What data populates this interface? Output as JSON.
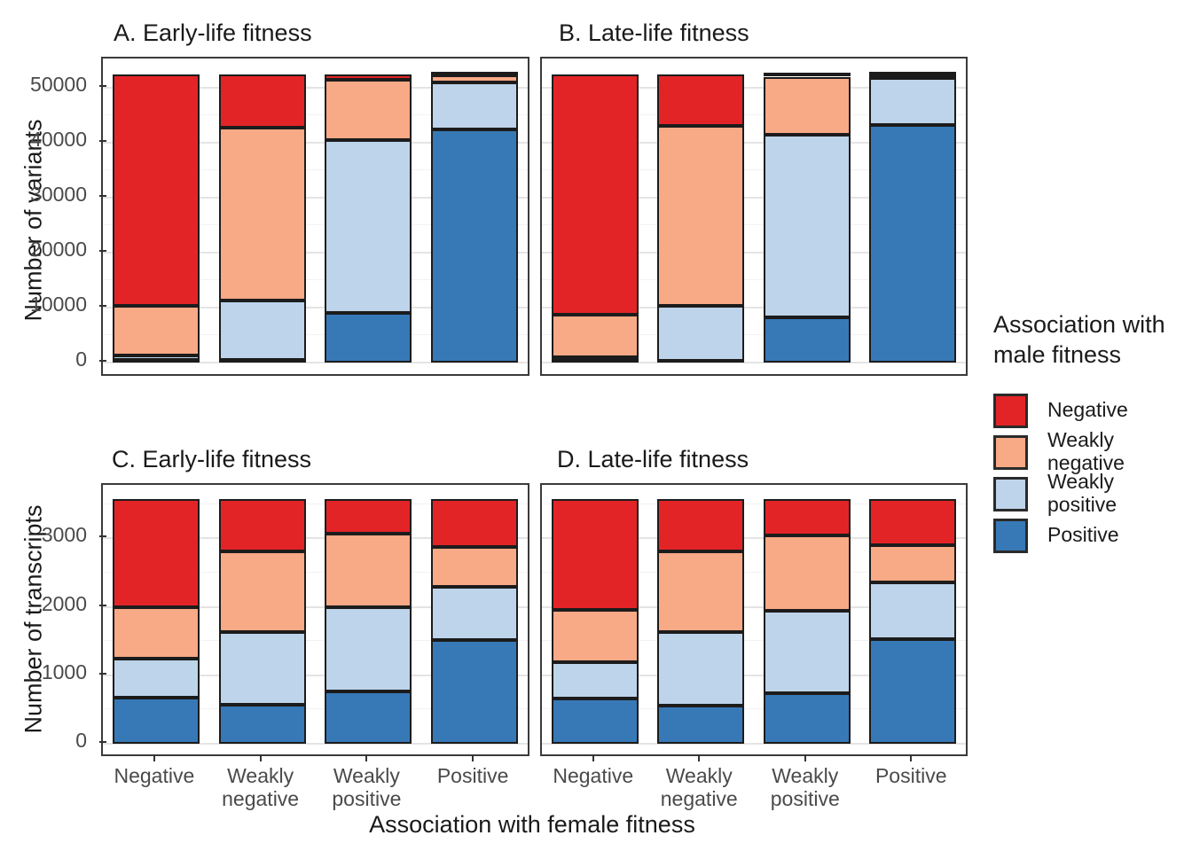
{
  "figure": {
    "y_axis_top_title": "Number of variants",
    "y_axis_bottom_title": "Number of transcripts",
    "x_axis_title": "Association with female fitness",
    "y_ticks_top": [
      "0",
      "10000",
      "20000",
      "30000",
      "40000",
      "50000"
    ],
    "y_ticks_bottom": [
      "0",
      "1000",
      "2000",
      "3000"
    ]
  },
  "legend": {
    "title": "Association with male fitness",
    "entries": [
      {
        "label": "Negative",
        "color": "#e32427"
      },
      {
        "label": "Weakly negative",
        "color": "#f8a985"
      },
      {
        "label": "Weakly positive",
        "color": "#bdd4ea"
      },
      {
        "label": "Positive",
        "color": "#3779b6"
      }
    ]
  },
  "colors": {
    "negative": "#e32427",
    "weakly_negative": "#f8a985",
    "weakly_positive": "#bdd4ea",
    "positive": "#3779b6",
    "bar_border": "#1c1c1c",
    "panel_border": "#3a3a3a"
  },
  "chart_data": {
    "type": "bar",
    "stacked": true,
    "grid": true,
    "legend_position": "right",
    "legend_title": "Association with male fitness",
    "categories": [
      "Negative",
      "Weakly negative",
      "Weakly positive",
      "Positive"
    ],
    "xlabel": "Association with female fitness",
    "panels": [
      {
        "id": "A",
        "row": 0,
        "title": "A. Early-life fitness",
        "ylabel": "Number of variants",
        "ylim": [
          0,
          52400
        ],
        "series": [
          {
            "name": "Positive",
            "values": [
              500,
              500,
              9000,
              42400
            ]
          },
          {
            "name": "Weakly positive",
            "values": [
              800,
              10800,
              31500,
              8600
            ]
          },
          {
            "name": "Weakly negative",
            "values": [
              9000,
              31500,
              10900,
              1200
            ]
          },
          {
            "name": "Negative",
            "values": [
              42100,
              9600,
              1000,
              200
            ]
          }
        ]
      },
      {
        "id": "B",
        "row": 0,
        "title": "B. Late-life fitness",
        "ylabel": "Number of variants",
        "ylim": [
          0,
          52400
        ],
        "series": [
          {
            "name": "Positive",
            "values": [
              350,
              400,
              8300,
              43200
            ]
          },
          {
            "name": "Weakly positive",
            "values": [
              600,
              10000,
              33100,
              8600
            ]
          },
          {
            "name": "Weakly negative",
            "values": [
              7800,
              32700,
              10600,
              400
            ]
          },
          {
            "name": "Negative",
            "values": [
              43650,
              9300,
              400,
              200
            ]
          }
        ]
      },
      {
        "id": "C",
        "row": 1,
        "title": "C. Early-life fitness",
        "ylabel": "Number of transcripts",
        "ylim": [
          0,
          3575
        ],
        "series": [
          {
            "name": "Positive",
            "values": [
              680,
              575,
              760,
              1515
            ]
          },
          {
            "name": "Weakly positive",
            "values": [
              570,
              1060,
              1230,
              775
            ]
          },
          {
            "name": "Weakly negative",
            "values": [
              740,
              1180,
              1075,
              580
            ]
          },
          {
            "name": "Negative",
            "values": [
              1585,
              760,
              510,
              705
            ]
          }
        ]
      },
      {
        "id": "D",
        "row": 1,
        "title": "D. Late-life fitness",
        "ylabel": "Number of transcripts",
        "ylim": [
          0,
          3575
        ],
        "series": [
          {
            "name": "Positive",
            "values": [
              660,
              555,
              735,
              1535
            ]
          },
          {
            "name": "Weakly positive",
            "values": [
              530,
              1080,
              1210,
              820
            ]
          },
          {
            "name": "Weakly negative",
            "values": [
              770,
              1175,
              1100,
              545
            ]
          },
          {
            "name": "Negative",
            "values": [
              1615,
              765,
              530,
              675
            ]
          }
        ]
      }
    ]
  }
}
